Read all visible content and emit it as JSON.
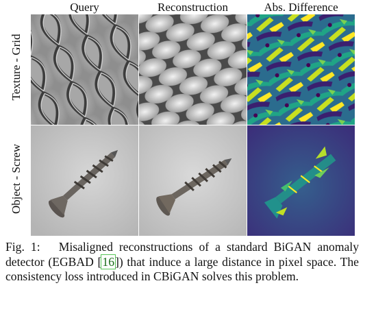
{
  "figure": {
    "columns": [
      "Query",
      "Reconstruction",
      "Abs. Difference"
    ],
    "rows": [
      "Texture - Grid",
      "Object - Screw"
    ]
  },
  "caption": {
    "label": "Fig. 1:",
    "text_before_ref": "Misaligned reconstructions of a standard BiGAN anomaly detector (EGBAD [",
    "ref": "16",
    "text_after_ref": "]) that induce a large distance in pixel space. The consistency loss introduced in CBiGAN solves this problem."
  }
}
